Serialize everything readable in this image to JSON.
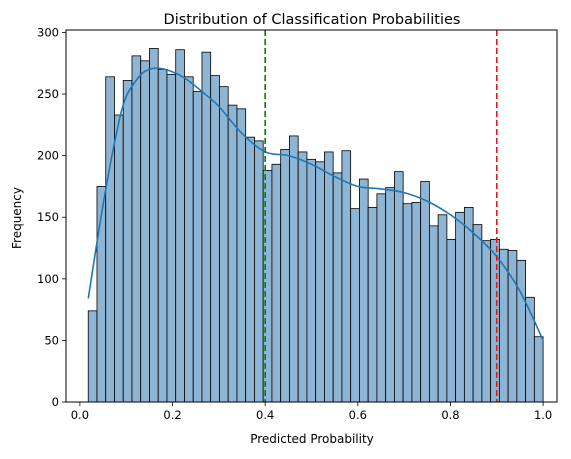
{
  "chart_data": {
    "type": "bar",
    "title": "Distribution of Classification Probabilities",
    "xlabel": "Predicted Probability",
    "ylabel": "Frequency",
    "xlim": [
      -0.03,
      1.03
    ],
    "ylim": [
      0,
      302
    ],
    "xticks": [
      0.0,
      0.2,
      0.4,
      0.6,
      0.8,
      1.0
    ],
    "xtick_labels": [
      "0.0",
      "0.2",
      "0.4",
      "0.6",
      "0.8",
      "1.0"
    ],
    "yticks": [
      0,
      50,
      100,
      150,
      200,
      250,
      300
    ],
    "ytick_labels": [
      "0",
      "50",
      "100",
      "150",
      "200",
      "250",
      "300"
    ],
    "grid": false,
    "bin_range": [
      0.018,
      1.0
    ],
    "counts": [
      74,
      175,
      264,
      233,
      261,
      281,
      277,
      287,
      270,
      266,
      286,
      264,
      252,
      284,
      265,
      256,
      241,
      238,
      215,
      212,
      188,
      193,
      205,
      216,
      203,
      197,
      195,
      203,
      186,
      204,
      157,
      181,
      158,
      169,
      174,
      187,
      161,
      162,
      179,
      143,
      152,
      132,
      154,
      158,
      144,
      131,
      132,
      124,
      123,
      115,
      85,
      53
    ],
    "kde": {
      "x": [
        0.018,
        0.05,
        0.08,
        0.1,
        0.13,
        0.15,
        0.17,
        0.2,
        0.23,
        0.27,
        0.3,
        0.35,
        0.4,
        0.45,
        0.5,
        0.55,
        0.6,
        0.65,
        0.7,
        0.75,
        0.8,
        0.85,
        0.9,
        0.95,
        1.0
      ],
      "y": [
        84,
        160,
        220,
        248,
        265,
        270,
        271,
        268,
        262,
        250,
        240,
        218,
        203,
        200,
        193,
        183,
        175,
        173,
        170,
        163,
        152,
        137,
        118,
        90,
        50
      ]
    },
    "reference_lines": [
      {
        "x": 0.4,
        "color": "#008000",
        "style": "dashed"
      },
      {
        "x": 0.9,
        "color": "#e31a1c",
        "style": "dashed"
      }
    ],
    "colors": {
      "bar_fill": "#8fb5d4",
      "bar_edge": "#000000",
      "kde_line": "#1f77b4"
    }
  }
}
